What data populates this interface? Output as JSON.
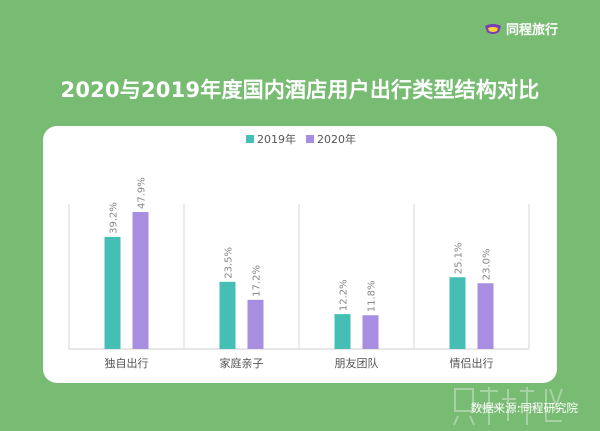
{
  "brand": {
    "name": "同程旅行",
    "icon": "tongcheng-logo-icon"
  },
  "title": "2020与2019年度国内酒店用户出行类型结构对比",
  "source": "数据来源:同程研究院",
  "colors": {
    "background": "#78bb73",
    "series_2019": "#45bfb6",
    "series_2020": "#a88ee0"
  },
  "chart_data": {
    "type": "bar",
    "categories": [
      "独自出行",
      "家庭亲子",
      "朋友团队",
      "情侣出行"
    ],
    "series": [
      {
        "name": "2019年",
        "values": [
          39.2,
          23.5,
          12.2,
          25.1
        ],
        "labels": [
          "39.2%",
          "23.5%",
          "12.2%",
          "25.1%"
        ],
        "color": "#45bfb6"
      },
      {
        "name": "2020年",
        "values": [
          47.9,
          17.2,
          11.8,
          23.0
        ],
        "labels": [
          "47.9%",
          "17.2%",
          "11.8%",
          "23.0%"
        ],
        "color": "#a88ee0"
      }
    ],
    "unit": "%",
    "ylim": [
      0,
      57
    ],
    "legend": "top-center",
    "grid": false
  }
}
